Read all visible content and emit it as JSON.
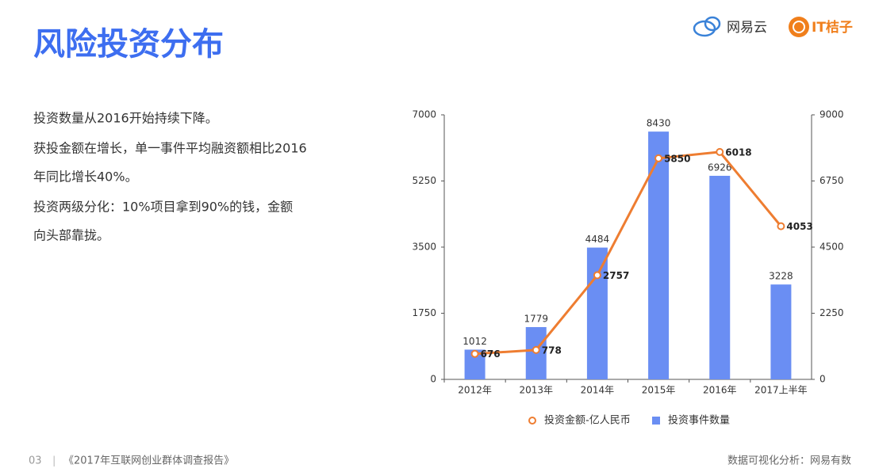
{
  "header": {
    "title": "风险投资分布",
    "logos": [
      "网易云",
      "IT桔子"
    ]
  },
  "text": {
    "lines": [
      "投资数量从2016开始持续下降。",
      "获投金额在增长，单一事件平均融资额相比2016",
      "年同比增长40%。",
      "投资两级分化：10%项目拿到90%的钱，金额",
      "向头部靠拢。"
    ]
  },
  "footer": {
    "page": "03",
    "separator": "|",
    "report": "《2017年互联网创业群体调查报告》",
    "source": "数据可视化分析：网易有数"
  },
  "chart_data": {
    "type": "combo",
    "categories": [
      "2012年",
      "2013年",
      "2014年",
      "2015年",
      "2016年",
      "2017上半年"
    ],
    "series": [
      {
        "name": "投资金额-亿人民币",
        "type": "line",
        "color": "#ee7d31",
        "values": [
          676,
          778,
          2757,
          5850,
          6018,
          4053
        ]
      },
      {
        "name": "投资事件数量",
        "type": "bar",
        "axis": "y2",
        "color": "#6a8ef3",
        "values": [
          1012,
          1779,
          4484,
          8430,
          6926,
          3228
        ]
      }
    ],
    "ylim": [
      0,
      7000
    ],
    "yticks": [
      0,
      1750,
      3500,
      5250,
      7000
    ],
    "y2lim": [
      0,
      9000
    ],
    "y2ticks": [
      0,
      2250,
      4500,
      6750,
      9000
    ],
    "grid": false,
    "legend": "bottom"
  }
}
